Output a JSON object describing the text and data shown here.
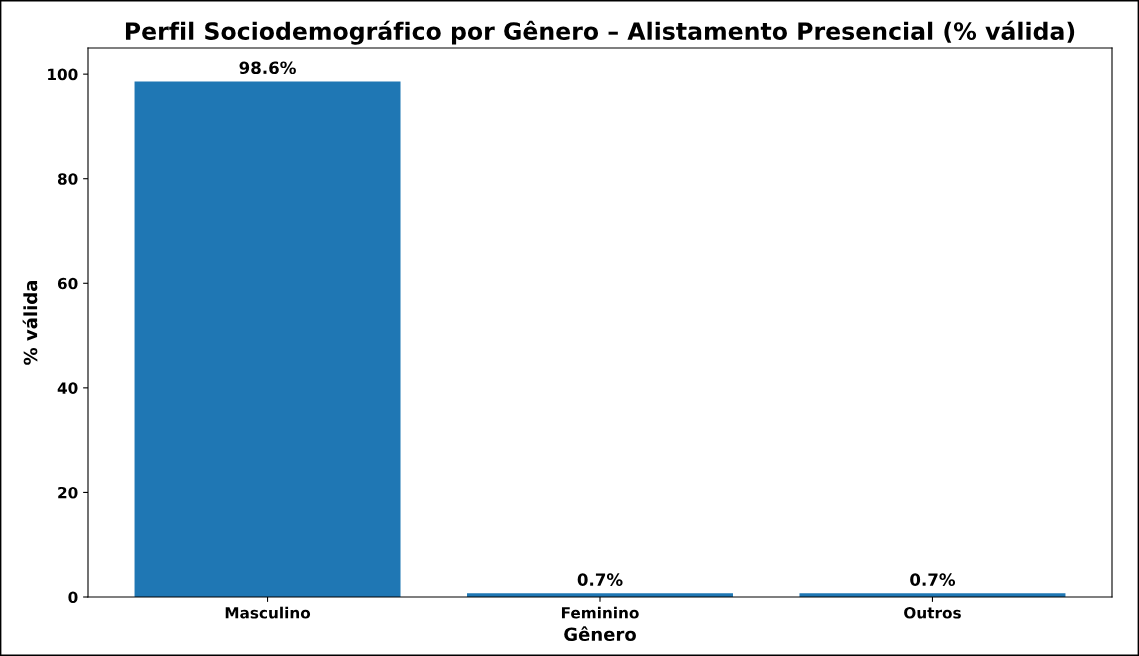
{
  "chart_data": {
    "type": "bar",
    "title": "Perfil Sociodemográfico por Gênero – Alistamento Presencial (% válida)",
    "xlabel": "Gênero",
    "ylabel": "% válida",
    "categories": [
      "Masculino",
      "Feminino",
      "Outros"
    ],
    "values": [
      98.6,
      0.7,
      0.7
    ],
    "value_labels": [
      "98.6%",
      "0.7%",
      "0.7%"
    ],
    "color": "#1f77b4",
    "ylim": [
      0,
      105
    ],
    "yticks": [
      0,
      20,
      40,
      60,
      80,
      100
    ],
    "grid": false,
    "legend": false
  }
}
